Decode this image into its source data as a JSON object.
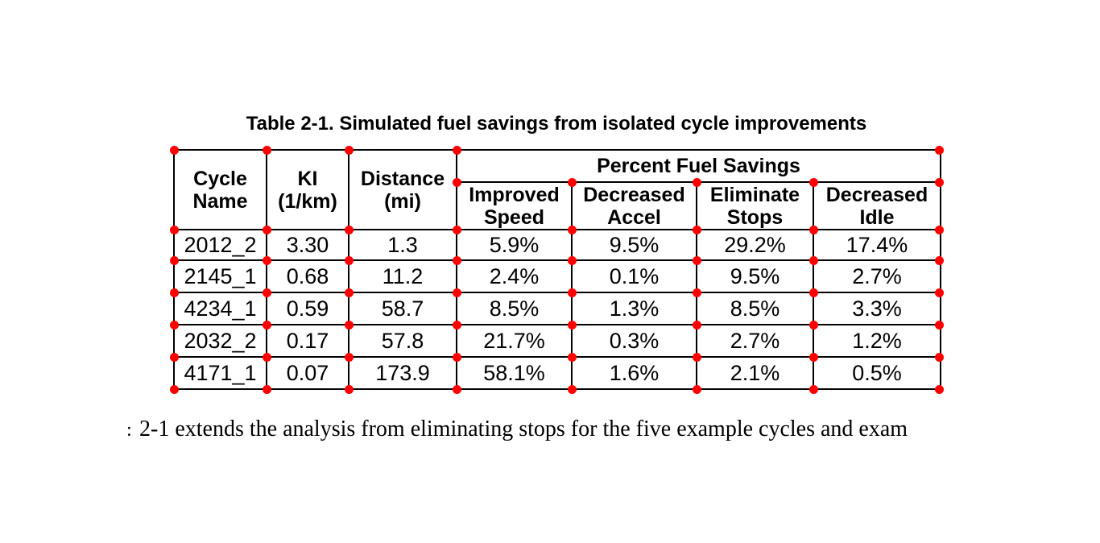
{
  "caption": "Table 2-1. Simulated fuel savings from isolated cycle improvements",
  "table": {
    "col_headers": [
      "Cycle\nName",
      "KI\n(1/km)",
      "Distance\n(mi)"
    ],
    "group_header": "Percent Fuel Savings",
    "sub_headers": [
      "Improved\nSpeed",
      "Decreased\nAccel",
      "Eliminate\nStops",
      "Decreased\nIdle"
    ],
    "rows": [
      [
        "2012_2",
        "3.30",
        "1.3",
        "5.9%",
        "9.5%",
        "29.2%",
        "17.4%"
      ],
      [
        "2145_1",
        "0.68",
        "11.2",
        "2.4%",
        "0.1%",
        "9.5%",
        "2.7%"
      ],
      [
        "4234_1",
        "0.59",
        "58.7",
        "8.5%",
        "1.3%",
        "8.5%",
        "3.3%"
      ],
      [
        "2032_2",
        "0.17",
        "57.8",
        "21.7%",
        "0.3%",
        "2.7%",
        "1.2%"
      ],
      [
        "4171_1",
        "0.07",
        "173.9",
        "58.1%",
        "1.6%",
        "2.1%",
        "0.5%"
      ]
    ]
  },
  "body": {
    "left_fragment": ":",
    "sentence": "2-1 extends the analysis from eliminating stops for the five example cycles and exam"
  },
  "annotations": {
    "marker_shape": "grid-intersection-dot",
    "marker_color": "#ff0000"
  },
  "colors": {
    "text": "#000000",
    "border": "#000000",
    "background": "#ffffff"
  }
}
